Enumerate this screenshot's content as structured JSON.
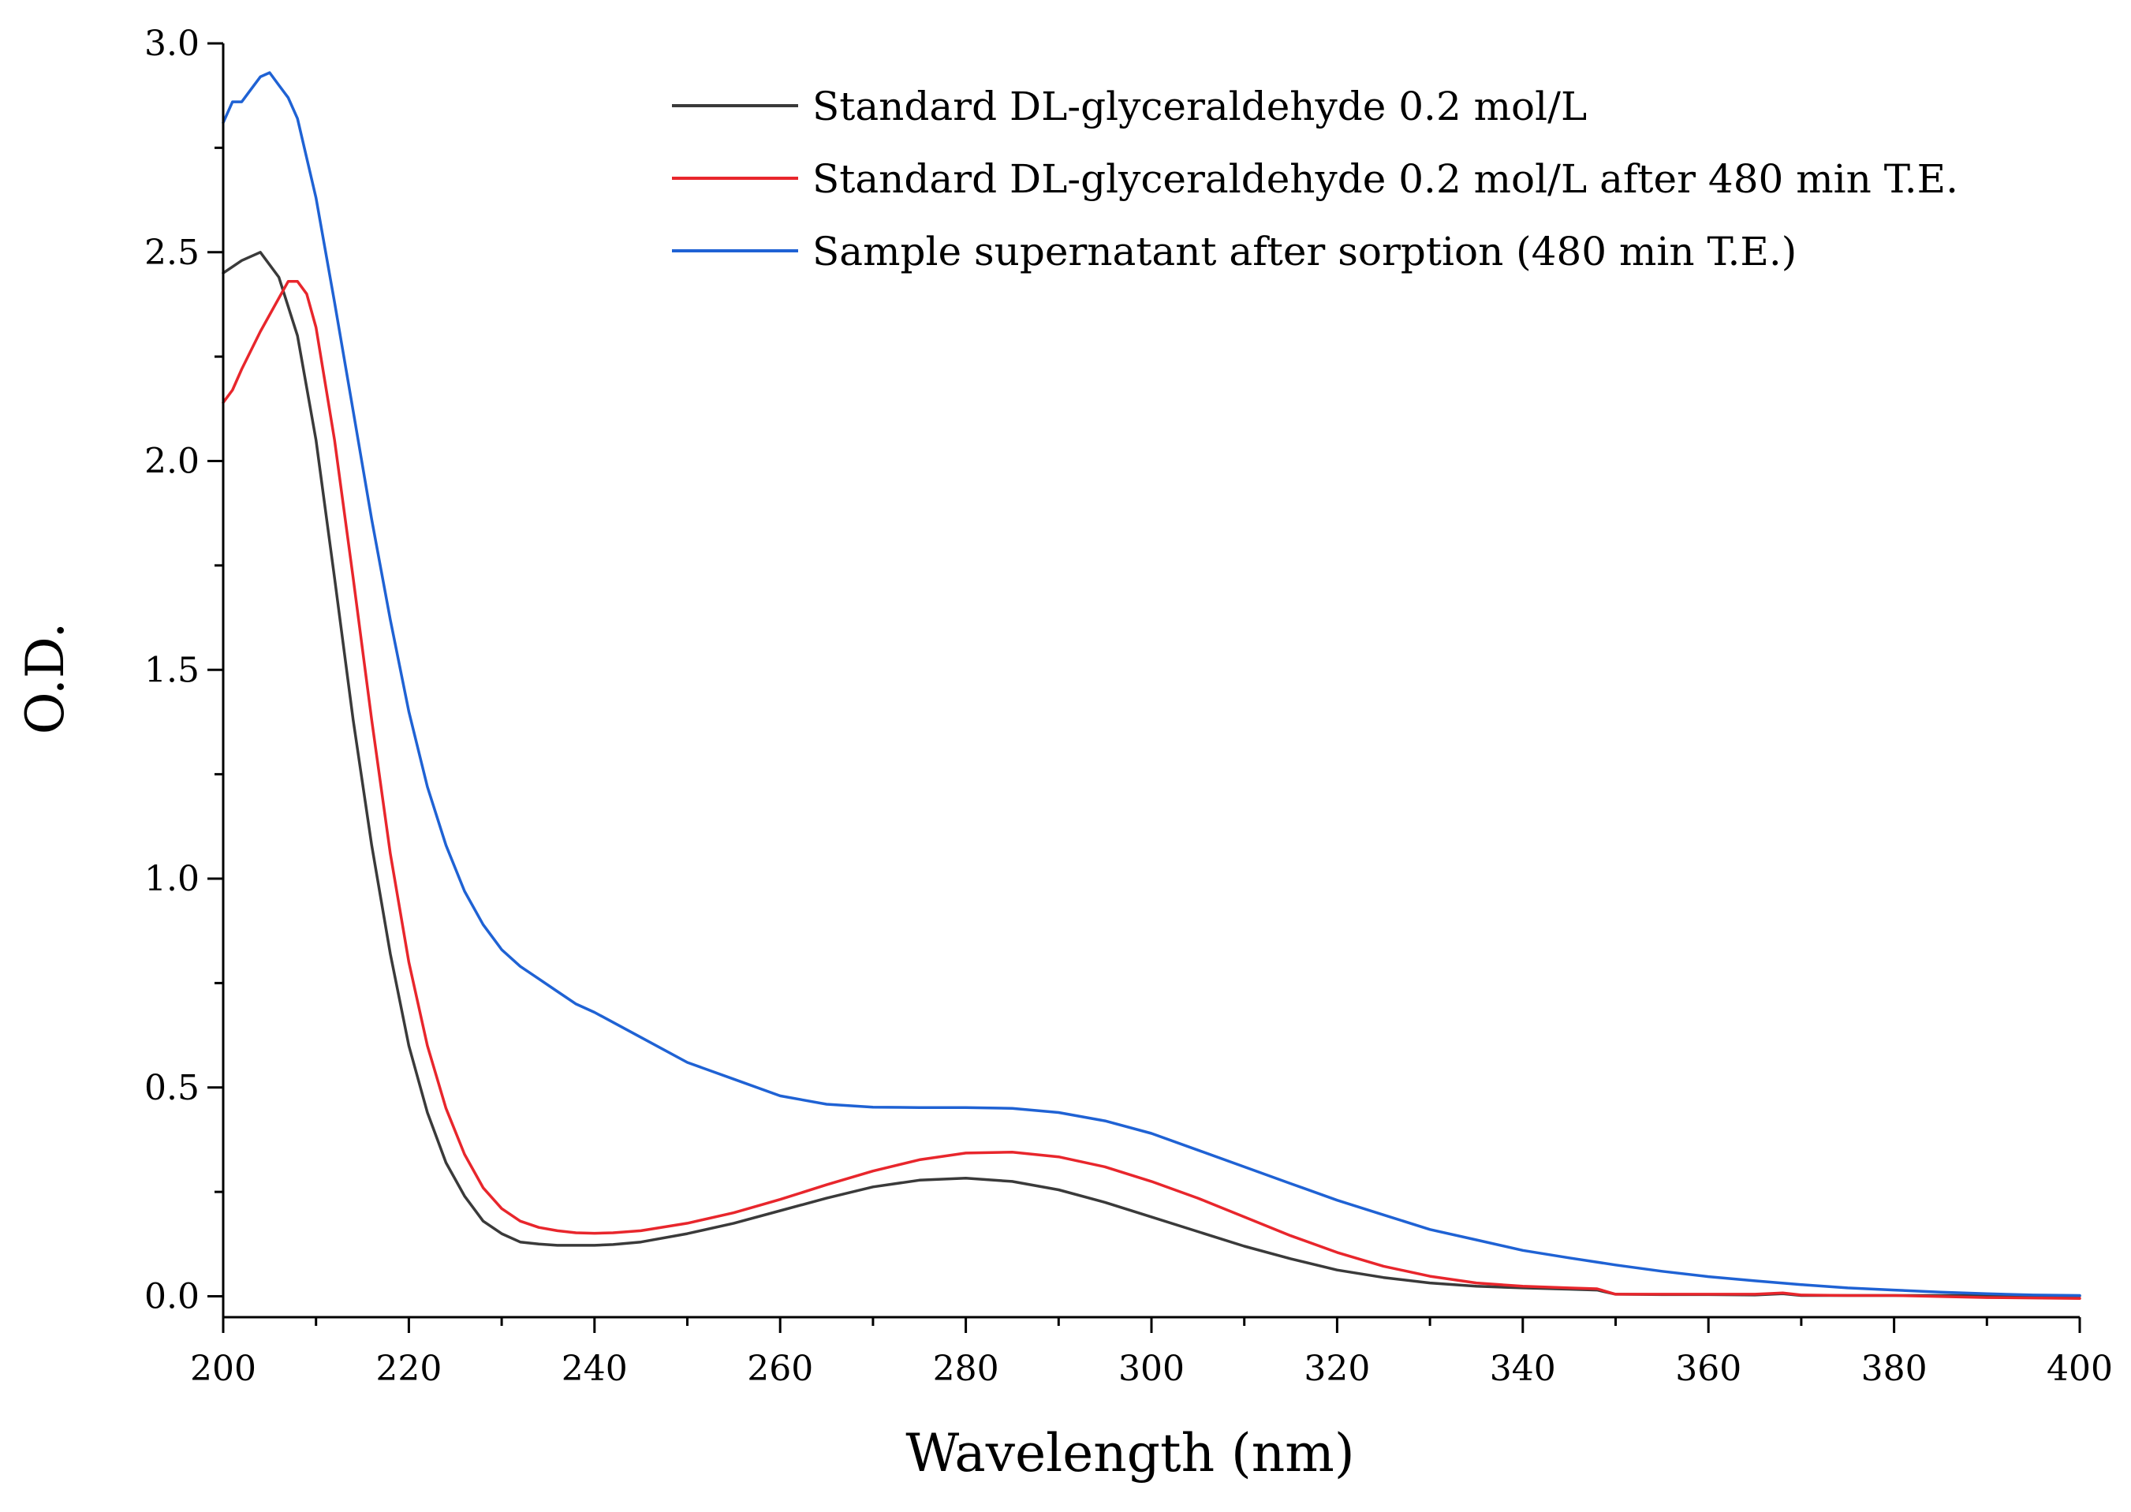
{
  "chart_data": {
    "type": "line",
    "title": "",
    "xlabel": "Wavelength (nm)",
    "ylabel": "O.D.",
    "xlim": [
      200,
      400
    ],
    "ylim": [
      -0.05,
      3.0
    ],
    "xticks": [
      200,
      220,
      240,
      260,
      280,
      300,
      320,
      340,
      360,
      380,
      400
    ],
    "xtick_labels": [
      "200",
      "220",
      "240",
      "260",
      "280",
      "300",
      "320",
      "340",
      "360",
      "380",
      "400"
    ],
    "yticks": [
      0.0,
      0.5,
      1.0,
      1.5,
      2.0,
      2.5,
      3.0
    ],
    "ytick_labels": [
      "0.0",
      "0.5",
      "1.0",
      "1.5",
      "2.0",
      "2.5",
      "3.0"
    ],
    "grid": false,
    "legend_position": "top-right",
    "series": [
      {
        "name": "Standard DL-glyceraldehyde 0.2 mol/L",
        "color": "#3a3a3a",
        "x": [
          200,
          202,
          204,
          206,
          208,
          210,
          212,
          214,
          216,
          218,
          220,
          222,
          224,
          226,
          228,
          230,
          232,
          234,
          236,
          238,
          240,
          242,
          245,
          250,
          255,
          260,
          265,
          270,
          275,
          280,
          285,
          290,
          295,
          300,
          305,
          310,
          315,
          320,
          325,
          330,
          335,
          340,
          345,
          348,
          350,
          355,
          360,
          365,
          368,
          370,
          375,
          380,
          390,
          400
        ],
        "y": [
          2.45,
          2.48,
          2.5,
          2.44,
          2.3,
          2.05,
          1.72,
          1.38,
          1.08,
          0.82,
          0.6,
          0.44,
          0.32,
          0.24,
          0.18,
          0.15,
          0.13,
          0.125,
          0.122,
          0.122,
          0.122,
          0.124,
          0.13,
          0.15,
          0.175,
          0.205,
          0.235,
          0.262,
          0.278,
          0.283,
          0.275,
          0.255,
          0.225,
          0.19,
          0.155,
          0.12,
          0.09,
          0.063,
          0.045,
          0.032,
          0.024,
          0.02,
          0.017,
          0.015,
          0.005,
          0.004,
          0.004,
          0.003,
          0.006,
          0.002,
          0.002,
          0.002,
          0.002,
          0.001
        ]
      },
      {
        "name": "Standard DL-glyceraldehyde 0.2 mol/L after 480 min T.E.",
        "color": "#e8262c",
        "x": [
          200,
          201,
          202,
          204,
          206,
          207,
          208,
          209,
          210,
          212,
          214,
          216,
          218,
          220,
          222,
          224,
          226,
          228,
          230,
          232,
          234,
          236,
          238,
          240,
          242,
          245,
          250,
          255,
          260,
          265,
          270,
          275,
          280,
          285,
          290,
          295,
          300,
          305,
          310,
          315,
          320,
          325,
          330,
          335,
          340,
          345,
          348,
          350,
          355,
          360,
          365,
          368,
          370,
          375,
          380,
          390,
          400
        ],
        "y": [
          2.14,
          2.17,
          2.22,
          2.31,
          2.39,
          2.43,
          2.43,
          2.4,
          2.32,
          2.05,
          1.72,
          1.38,
          1.06,
          0.8,
          0.6,
          0.45,
          0.34,
          0.26,
          0.21,
          0.18,
          0.165,
          0.157,
          0.152,
          0.151,
          0.152,
          0.157,
          0.175,
          0.2,
          0.232,
          0.267,
          0.3,
          0.327,
          0.343,
          0.345,
          0.334,
          0.31,
          0.275,
          0.235,
          0.19,
          0.145,
          0.105,
          0.072,
          0.048,
          0.032,
          0.024,
          0.02,
          0.018,
          0.005,
          0.005,
          0.005,
          0.005,
          0.008,
          0.003,
          0.002,
          0.002,
          -0.003,
          -0.005
        ]
      },
      {
        "name": "Sample supernatant after sorption (480 min T.E.)",
        "color": "#1f62d4",
        "x": [
          200,
          201,
          202,
          203,
          204,
          205,
          206,
          207,
          208,
          210,
          212,
          214,
          216,
          218,
          220,
          222,
          224,
          226,
          228,
          230,
          232,
          234,
          236,
          238,
          240,
          245,
          250,
          255,
          260,
          265,
          270,
          275,
          280,
          285,
          290,
          295,
          300,
          305,
          310,
          315,
          320,
          325,
          330,
          335,
          340,
          345,
          350,
          355,
          360,
          365,
          370,
          375,
          380,
          385,
          390,
          395,
          400
        ],
        "y": [
          2.81,
          2.86,
          2.86,
          2.89,
          2.92,
          2.93,
          2.9,
          2.87,
          2.82,
          2.63,
          2.38,
          2.12,
          1.86,
          1.62,
          1.4,
          1.22,
          1.08,
          0.97,
          0.89,
          0.83,
          0.79,
          0.76,
          0.73,
          0.7,
          0.68,
          0.62,
          0.56,
          0.52,
          0.48,
          0.46,
          0.453,
          0.452,
          0.452,
          0.45,
          0.44,
          0.42,
          0.39,
          0.35,
          0.31,
          0.27,
          0.23,
          0.195,
          0.16,
          0.135,
          0.11,
          0.092,
          0.075,
          0.06,
          0.047,
          0.037,
          0.028,
          0.02,
          0.015,
          0.01,
          0.006,
          0.003,
          0.002
        ]
      }
    ]
  }
}
